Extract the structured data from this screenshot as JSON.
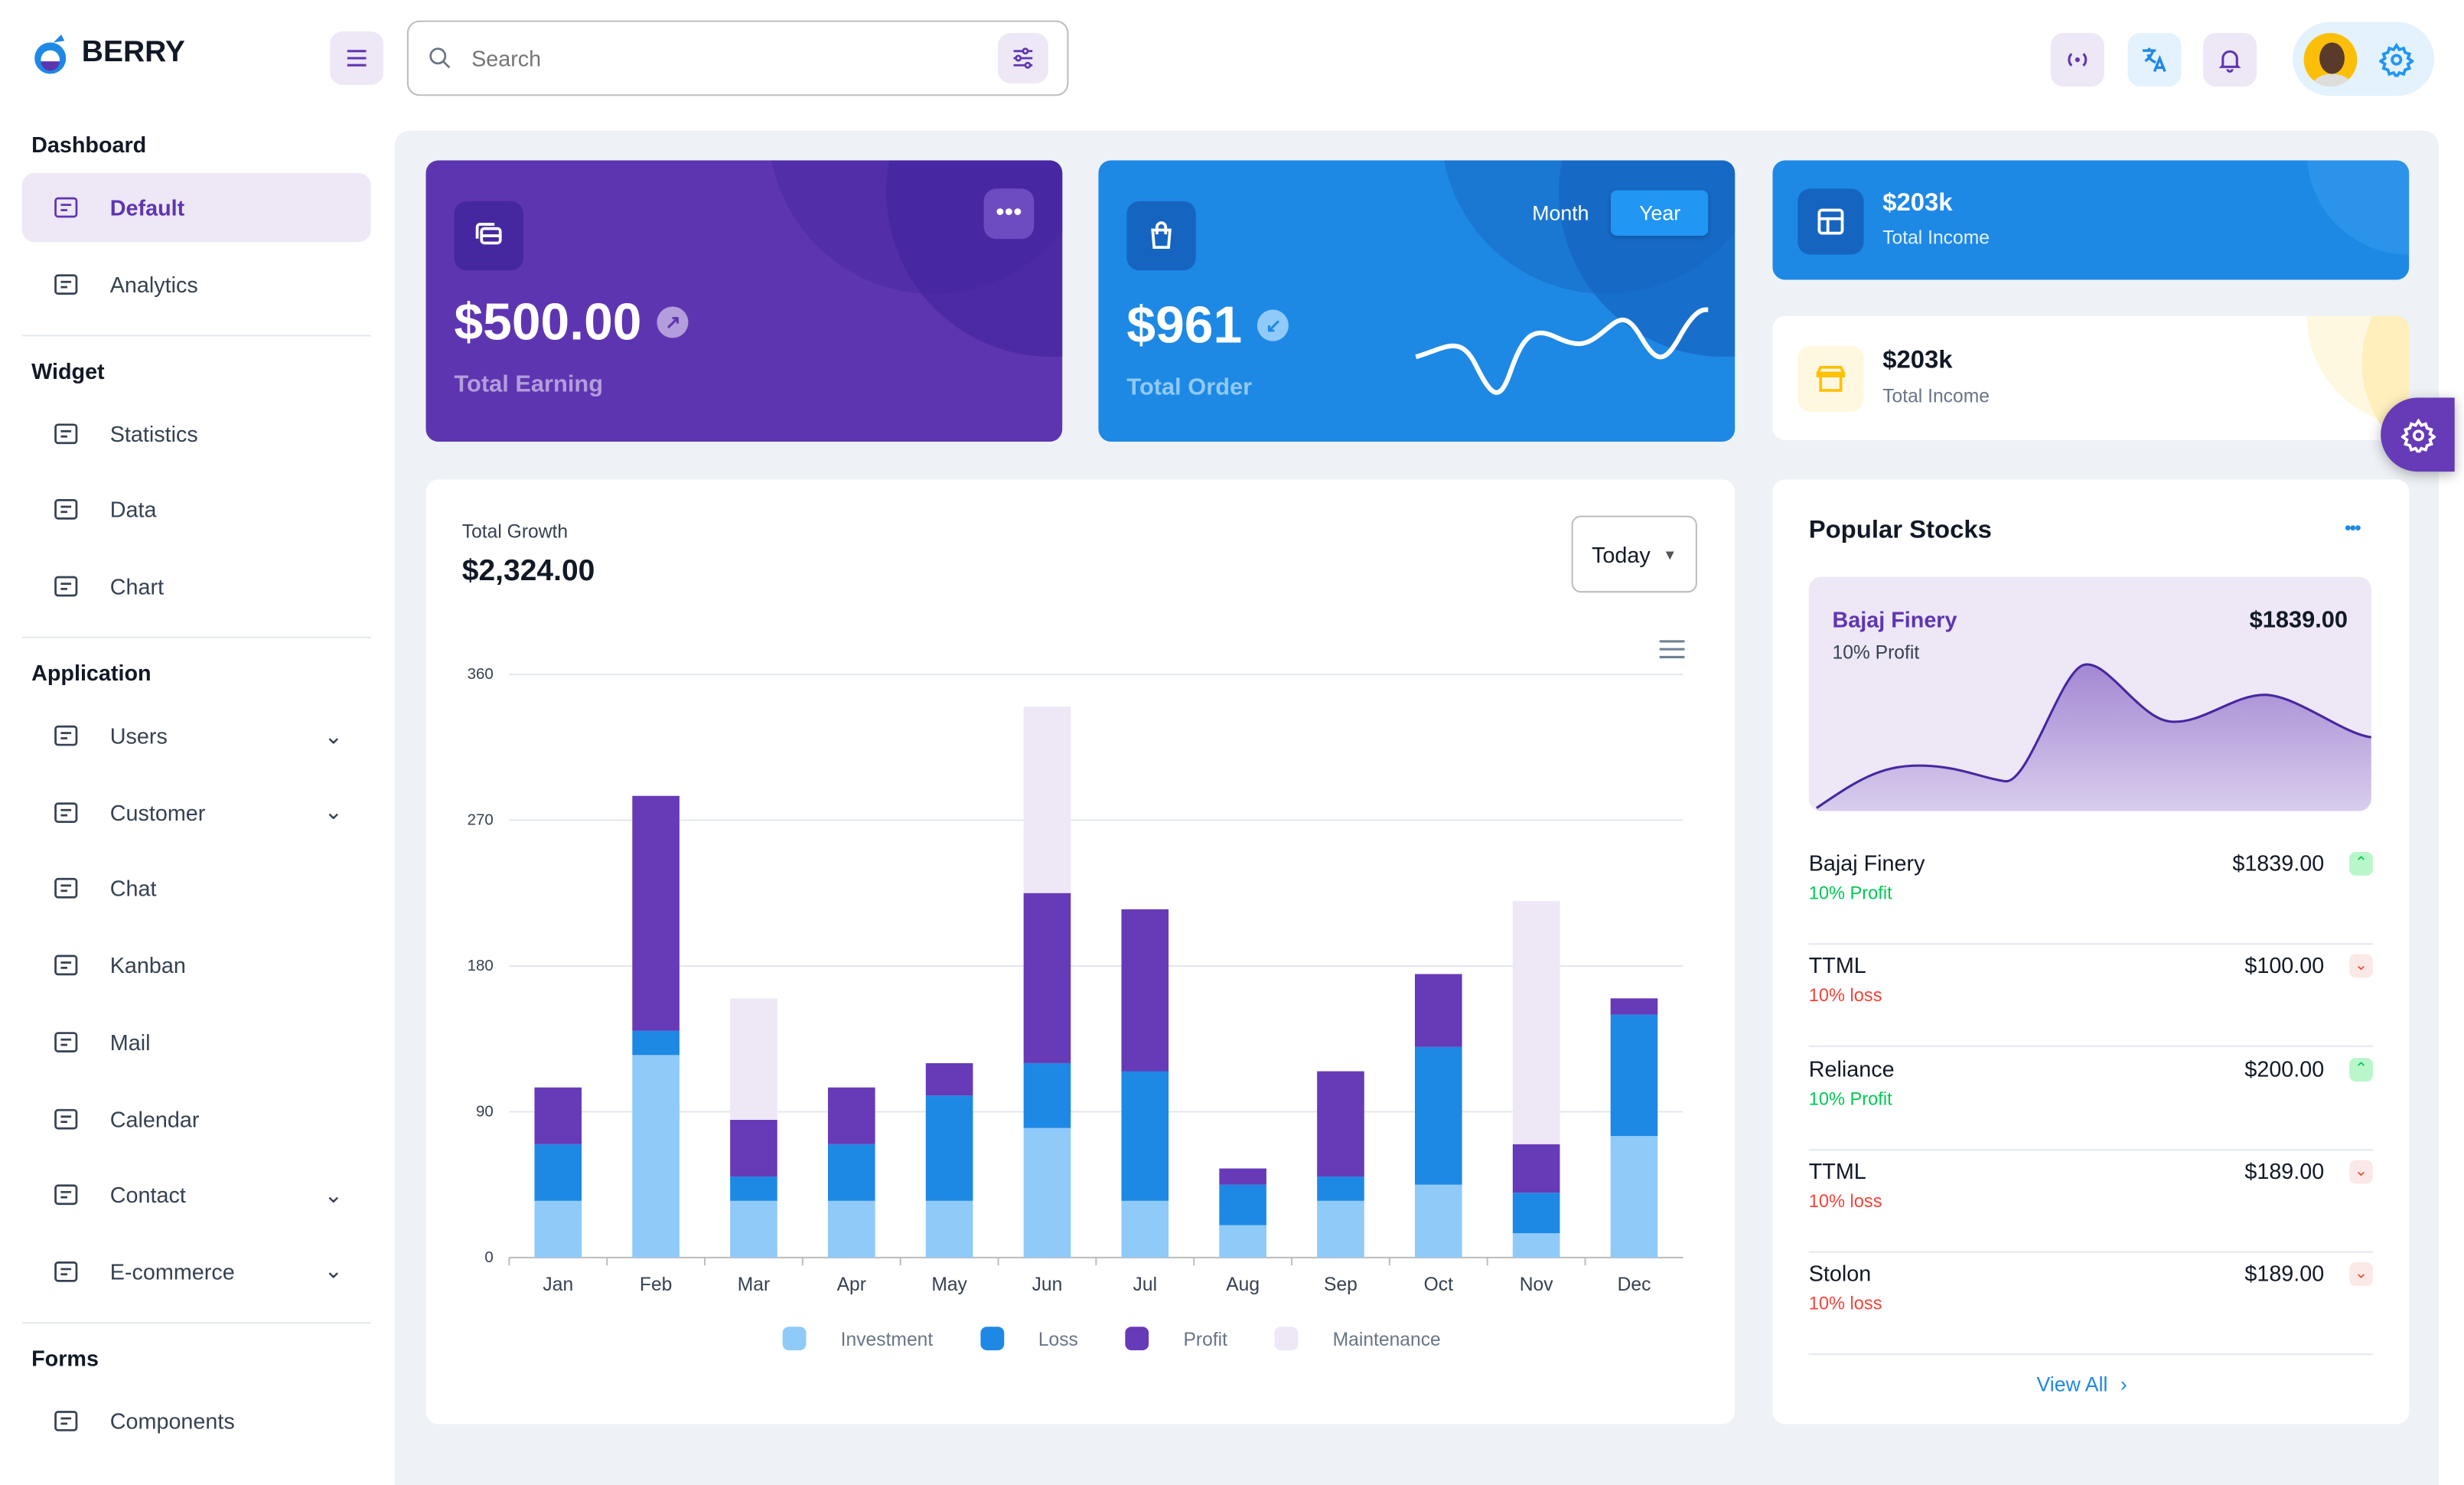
{
  "app": {
    "brand": "BERRY"
  },
  "search": {
    "placeholder": "Search"
  },
  "header_icons": [
    "broadcast-icon",
    "translate-icon",
    "bell-icon",
    "avatar",
    "gear-icon"
  ],
  "sidebar": {
    "sections": [
      {
        "title": "Dashboard",
        "items": [
          {
            "label": "Default",
            "active": true,
            "icon": "dashboard-icon"
          },
          {
            "label": "Analytics",
            "icon": "device-analytics-icon"
          }
        ]
      },
      {
        "title": "Widget",
        "items": [
          {
            "label": "Statistics",
            "icon": "chart-arcs-icon"
          },
          {
            "label": "Data",
            "icon": "clipboard-list-icon"
          },
          {
            "label": "Chart",
            "icon": "chart-dots-icon"
          }
        ]
      },
      {
        "title": "Application",
        "items": [
          {
            "label": "Users",
            "icon": "user-check-icon",
            "expandable": true
          },
          {
            "label": "Customer",
            "icon": "basket-icon",
            "expandable": true
          },
          {
            "label": "Chat",
            "icon": "messages-icon"
          },
          {
            "label": "Kanban",
            "icon": "layout-kanban-icon"
          },
          {
            "label": "Mail",
            "icon": "mail-icon"
          },
          {
            "label": "Calendar",
            "icon": "calendar-icon"
          },
          {
            "label": "Contact",
            "icon": "nfc-icon",
            "expandable": true
          },
          {
            "label": "E-commerce",
            "icon": "basket-icon",
            "expandable": true
          }
        ]
      },
      {
        "title": "Forms",
        "items": [
          {
            "label": "Components",
            "icon": "input-icon"
          }
        ]
      }
    ]
  },
  "earning": {
    "value": "$500.00",
    "label": "Total Earning"
  },
  "order": {
    "value": "$961",
    "label": "Total Order",
    "toggle": [
      "Month",
      "Year"
    ],
    "selected": "Year"
  },
  "income1": {
    "value": "$203k",
    "label": "Total Income"
  },
  "income2": {
    "value": "$203k",
    "label": "Total Income"
  },
  "growth": {
    "label": "Total Growth",
    "value": "$2,324.00",
    "period": "Today"
  },
  "chart_data": {
    "type": "bar",
    "stacked": true,
    "categories": [
      "Jan",
      "Feb",
      "Mar",
      "Apr",
      "May",
      "Jun",
      "Jul",
      "Aug",
      "Sep",
      "Oct",
      "Nov",
      "Dec"
    ],
    "ylim": [
      0,
      360
    ],
    "yticks": [
      0,
      90,
      180,
      270,
      360
    ],
    "grid": true,
    "legend": "bottom",
    "series": [
      {
        "name": "Investment",
        "color": "#90caf9",
        "values": [
          35,
          125,
          35,
          35,
          35,
          80,
          35,
          20,
          35,
          45,
          15,
          75
        ]
      },
      {
        "name": "Loss",
        "color": "#1e88e5",
        "values": [
          35,
          15,
          15,
          35,
          65,
          40,
          80,
          25,
          15,
          85,
          25,
          75
        ]
      },
      {
        "name": "Profit",
        "color": "#673ab7",
        "values": [
          35,
          145,
          35,
          35,
          20,
          105,
          100,
          10,
          65,
          45,
          30,
          10
        ]
      },
      {
        "name": "Maintenance",
        "color": "#ede7f6",
        "values": [
          0,
          0,
          75,
          0,
          0,
          115,
          0,
          0,
          0,
          0,
          150,
          0
        ]
      }
    ]
  },
  "stocks": {
    "title": "Popular Stocks",
    "featured": {
      "name": "Bajaj Finery",
      "price": "$1839.00",
      "sub": "10% Profit"
    },
    "list": [
      {
        "name": "Bajaj Finery",
        "price": "$1839.00",
        "sub": "10% Profit",
        "up": true
      },
      {
        "name": "TTML",
        "price": "$100.00",
        "sub": "10% loss",
        "up": false
      },
      {
        "name": "Reliance",
        "price": "$200.00",
        "sub": "10% Profit",
        "up": true
      },
      {
        "name": "TTML",
        "price": "$189.00",
        "sub": "10% loss",
        "up": false
      },
      {
        "name": "Stolon",
        "price": "$189.00",
        "sub": "10% loss",
        "up": false
      }
    ],
    "view_all": "View All"
  },
  "colors": {
    "primary": "#5e35b1",
    "secondary": "#1e88e5",
    "success": "#00c853",
    "error": "#f44336"
  }
}
